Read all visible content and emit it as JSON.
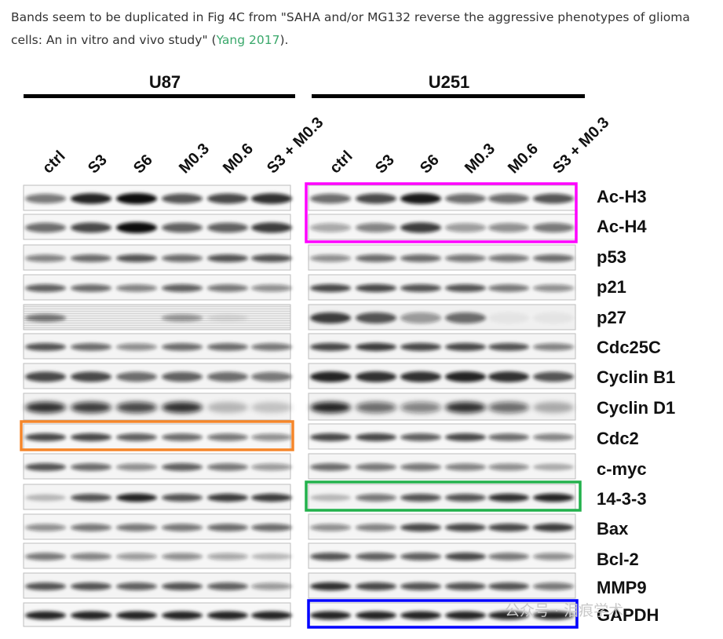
{
  "caption": {
    "text_before": "Bands seem to be duplicated in Fig 4C from \"SAHA and/or MG132 reverse the aggressive phenotypes of glioma cells: An in vitro and vivo study\" (",
    "link_text": "Yang 2017",
    "text_after": ")."
  },
  "figure": {
    "group_left": "U87",
    "group_right": "U251",
    "lanes": [
      "ctrl",
      "S3",
      "S6",
      "M0.3",
      "M0.6",
      "S3 + M0.3"
    ],
    "proteins": [
      "Ac-H3",
      "Ac-H4",
      "p53",
      "p21",
      "p27",
      "Cdc25C",
      "Cyclin B1",
      "Cyclin D1",
      "Cdc2",
      "c-myc",
      "14-3-3",
      "Bax",
      "Bcl-2",
      "MMP9",
      "GAPDH"
    ],
    "highlight_colors": {
      "magenta": "#ff00ff",
      "orange": "#f5862a",
      "green": "#22b14c",
      "blue": "#0000ff"
    },
    "watermark": "公众号 · 泪痕学术"
  }
}
